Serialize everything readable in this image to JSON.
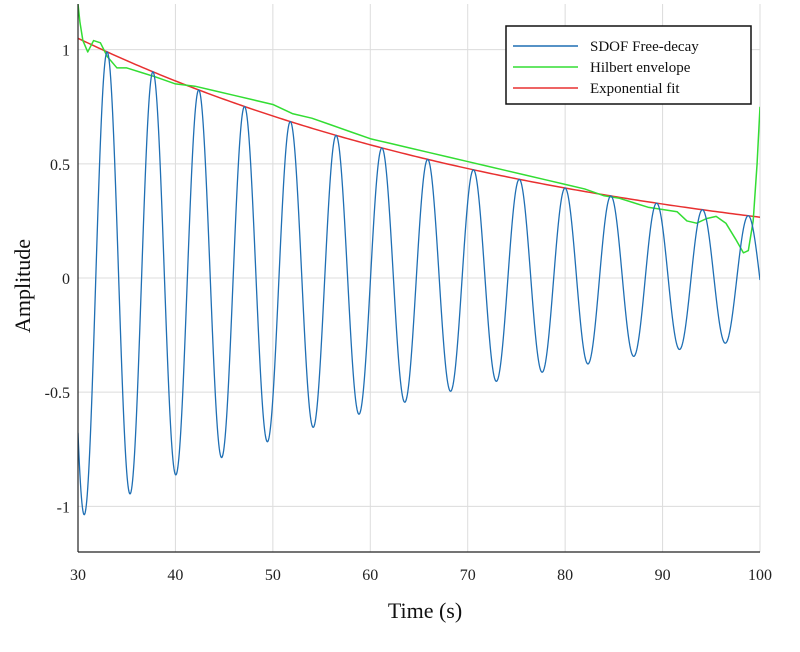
{
  "chart_data": {
    "type": "line",
    "title": "",
    "xlabel": "Time (s)",
    "ylabel": "Amplitude",
    "xlim": [
      30,
      100
    ],
    "ylim": [
      -1.2,
      1.2
    ],
    "xticks": [
      30,
      40,
      50,
      60,
      70,
      80,
      90,
      100
    ],
    "yticks": [
      1,
      0.5,
      0,
      -0.5,
      -1
    ],
    "xtick_labels": [
      "30",
      "40",
      "50",
      "60",
      "70",
      "80",
      "90",
      "100"
    ],
    "ytick_labels": [
      "1",
      "0.5",
      "0",
      "-0.5",
      "-1"
    ],
    "grid": true,
    "legend_position": "top-right",
    "series": [
      {
        "name": "SDOF Free-decay",
        "color": "#1f6fb4",
        "kind": "damped-sine",
        "amplitude": 1.05,
        "decay_rate": 0.0196,
        "period": 4.7,
        "phase_time": 33.0,
        "t0": 30,
        "samples": 1400
      },
      {
        "name": "Hilbert envelope",
        "color": "#33dd33",
        "points": [
          [
            30,
            1.2
          ],
          [
            30.2,
            1.12
          ],
          [
            30.5,
            1.04
          ],
          [
            31.0,
            0.99
          ],
          [
            31.6,
            1.04
          ],
          [
            32.3,
            1.03
          ],
          [
            33.0,
            0.97
          ],
          [
            34.0,
            0.92
          ],
          [
            35.0,
            0.92
          ],
          [
            36.5,
            0.9
          ],
          [
            38.0,
            0.88
          ],
          [
            40.0,
            0.85
          ],
          [
            42.0,
            0.84
          ],
          [
            44.0,
            0.82
          ],
          [
            46.0,
            0.8
          ],
          [
            48.0,
            0.78
          ],
          [
            50.0,
            0.76
          ],
          [
            52.0,
            0.72
          ],
          [
            54.0,
            0.7
          ],
          [
            56.0,
            0.67
          ],
          [
            58.0,
            0.64
          ],
          [
            60.0,
            0.61
          ],
          [
            62.0,
            0.59
          ],
          [
            64.0,
            0.57
          ],
          [
            66.0,
            0.55
          ],
          [
            68.0,
            0.53
          ],
          [
            70.0,
            0.51
          ],
          [
            72.0,
            0.49
          ],
          [
            74.0,
            0.47
          ],
          [
            76.0,
            0.45
          ],
          [
            78.0,
            0.43
          ],
          [
            80.0,
            0.41
          ],
          [
            82.0,
            0.39
          ],
          [
            84.0,
            0.36
          ],
          [
            85.5,
            0.35
          ],
          [
            87.0,
            0.33
          ],
          [
            88.5,
            0.31
          ],
          [
            90.0,
            0.3
          ],
          [
            91.5,
            0.29
          ],
          [
            92.5,
            0.25
          ],
          [
            93.5,
            0.24
          ],
          [
            94.5,
            0.26
          ],
          [
            95.5,
            0.27
          ],
          [
            96.5,
            0.24
          ],
          [
            97.5,
            0.17
          ],
          [
            98.3,
            0.11
          ],
          [
            98.8,
            0.12
          ],
          [
            99.3,
            0.25
          ],
          [
            99.7,
            0.5
          ],
          [
            100.0,
            0.75
          ]
        ]
      },
      {
        "name": "Exponential fit",
        "color": "#e83030",
        "kind": "exponential",
        "amplitude": 1.05,
        "decay_rate": 0.0196,
        "t0": 30
      }
    ]
  }
}
